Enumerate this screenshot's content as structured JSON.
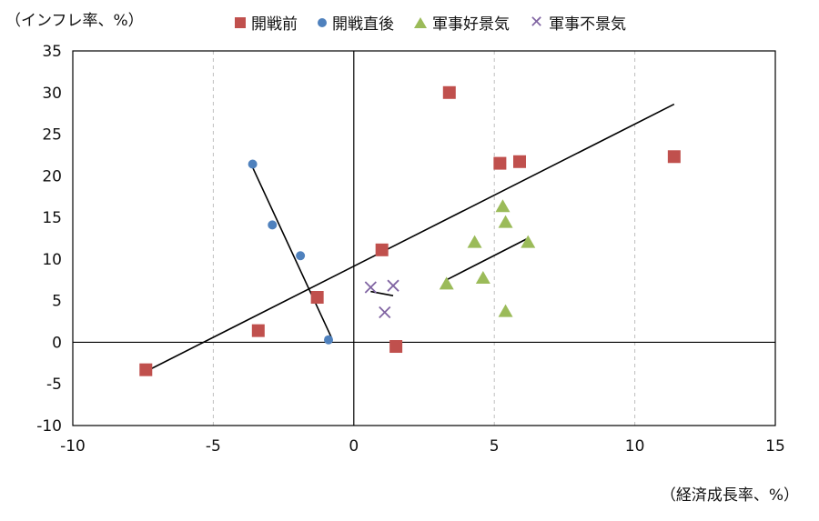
{
  "chart_data": {
    "type": "scatter",
    "ylabel": "（インフレ率、%）",
    "xlabel": "（経済成長率、%）",
    "xlim": [
      -10,
      15
    ],
    "ylim": [
      -10,
      35
    ],
    "xticks": [
      -10,
      -5,
      0,
      5,
      10,
      15
    ],
    "yticks": [
      -10,
      -5,
      0,
      5,
      10,
      15,
      20,
      25,
      30,
      35
    ],
    "grid": "vertical-dashed",
    "legend_position": "top",
    "series": [
      {
        "name": "開戦前",
        "marker": "square",
        "color": "#c0504d",
        "points": [
          [
            -7.4,
            -3.3
          ],
          [
            -3.4,
            1.4
          ],
          [
            -1.3,
            5.4
          ],
          [
            1.0,
            11.1
          ],
          [
            1.5,
            -0.5
          ],
          [
            3.4,
            30.0
          ],
          [
            5.2,
            21.5
          ],
          [
            5.9,
            21.7
          ],
          [
            11.4,
            22.3
          ]
        ],
        "trend": [
          [
            -7.4,
            -3.5
          ],
          [
            11.4,
            28.6
          ]
        ]
      },
      {
        "name": "開戦直後",
        "marker": "circle",
        "color": "#4f81bd",
        "points": [
          [
            -3.6,
            21.4
          ],
          [
            -2.9,
            14.1
          ],
          [
            -1.9,
            10.4
          ],
          [
            -0.9,
            0.3
          ]
        ],
        "trend": [
          [
            -3.6,
            21.0
          ],
          [
            -0.8,
            0.6
          ]
        ]
      },
      {
        "name": "軍事好景気",
        "marker": "triangle",
        "color": "#9bbb59",
        "points": [
          [
            3.3,
            7.0
          ],
          [
            4.3,
            12.0
          ],
          [
            4.6,
            7.7
          ],
          [
            5.3,
            16.3
          ],
          [
            5.4,
            14.4
          ],
          [
            5.4,
            3.7
          ],
          [
            6.2,
            12.0
          ]
        ],
        "trend": [
          [
            3.3,
            7.5
          ],
          [
            6.2,
            12.5
          ]
        ]
      },
      {
        "name": "軍事不景気",
        "marker": "x",
        "color": "#8064a2",
        "points": [
          [
            0.6,
            6.6
          ],
          [
            1.1,
            3.6
          ],
          [
            1.4,
            6.8
          ]
        ],
        "trend": [
          [
            0.6,
            6.1
          ],
          [
            1.4,
            5.6
          ]
        ]
      }
    ]
  }
}
